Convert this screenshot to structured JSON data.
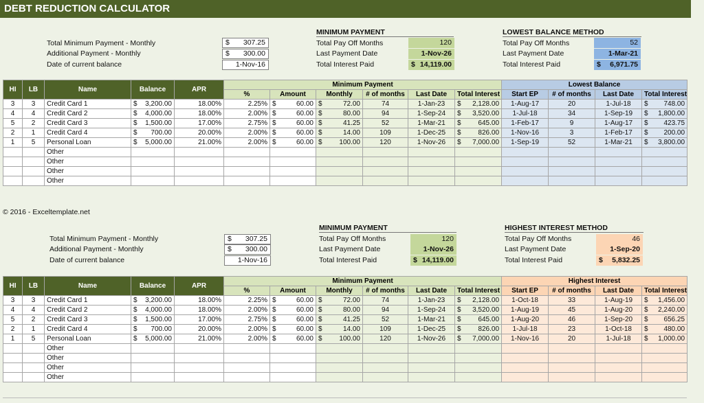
{
  "title": "DEBT REDUCTION CALCULATOR",
  "copyright": "© 2016 - Exceltemplate.net",
  "currency": "$",
  "colors": {
    "title_bg": "#4f6228",
    "min_green": "#c4d79b",
    "lowest_blue": "#8db4e2",
    "highest_orange": "#fcd5b4"
  },
  "inputs": {
    "labels": [
      "Total Minimum Payment - Monthly",
      "Additional Payment - Monthly",
      "Date of current balance"
    ],
    "total_min_payment": "307.25",
    "additional_payment": "300.00",
    "date_current_balance": "1-Nov-16"
  },
  "summary_labels": {
    "pay_off_months": "Total Pay Off Months",
    "last_payment_date": "Last Payment Date",
    "total_interest_paid": "Total Interest Paid"
  },
  "top": {
    "min_payment": {
      "heading": "MINIMUM PAYMENT",
      "months": "120",
      "last_date": "1-Nov-26",
      "interest": "14,119.00"
    },
    "method": {
      "heading": "LOWEST BALANCE METHOD",
      "months": "52",
      "last_date": "1-Mar-21",
      "interest": "6,971.75"
    },
    "table": {
      "headers": {
        "hi": "HI",
        "lb": "LB",
        "name": "Name",
        "balance": "Balance",
        "apr": "APR",
        "group_min": "Minimum Payment",
        "group_method": "Lowest Balance",
        "pct": "%",
        "amount": "Amount",
        "monthly": "Monthly",
        "months": "# of months",
        "last_date": "Last Date",
        "total_interest": "Total Interest",
        "start_ep": "Start EP",
        "m_months": "# of months",
        "m_last_date": "Last Date",
        "m_total_interest": "Total Interest"
      },
      "rows": [
        {
          "hi": "3",
          "lb": "3",
          "name": "Credit Card 1",
          "balance": "3,200.00",
          "apr": "18.00%",
          "pct": "2.25%",
          "amount": "60.00",
          "monthly": "72.00",
          "months": "74",
          "last_date": "1-Jan-23",
          "total_interest": "2,128.00",
          "start_ep": "1-Aug-17",
          "m_months": "20",
          "m_last_date": "1-Jul-18",
          "m_total_interest": "748.00"
        },
        {
          "hi": "4",
          "lb": "4",
          "name": "Credit Card 2",
          "balance": "4,000.00",
          "apr": "18.00%",
          "pct": "2.00%",
          "amount": "60.00",
          "monthly": "80.00",
          "months": "94",
          "last_date": "1-Sep-24",
          "total_interest": "3,520.00",
          "start_ep": "1-Jul-18",
          "m_months": "34",
          "m_last_date": "1-Sep-19",
          "m_total_interest": "1,800.00"
        },
        {
          "hi": "5",
          "lb": "2",
          "name": "Credit Card 3",
          "balance": "1,500.00",
          "apr": "17.00%",
          "pct": "2.75%",
          "amount": "60.00",
          "monthly": "41.25",
          "months": "52",
          "last_date": "1-Mar-21",
          "total_interest": "645.00",
          "start_ep": "1-Feb-17",
          "m_months": "9",
          "m_last_date": "1-Aug-17",
          "m_total_interest": "423.75"
        },
        {
          "hi": "2",
          "lb": "1",
          "name": "Credit Card 4",
          "balance": "700.00",
          "apr": "20.00%",
          "pct": "2.00%",
          "amount": "60.00",
          "monthly": "14.00",
          "months": "109",
          "last_date": "1-Dec-25",
          "total_interest": "826.00",
          "start_ep": "1-Nov-16",
          "m_months": "3",
          "m_last_date": "1-Feb-17",
          "m_total_interest": "200.00"
        },
        {
          "hi": "1",
          "lb": "5",
          "name": "Personal Loan",
          "balance": "5,000.00",
          "apr": "21.00%",
          "pct": "2.00%",
          "amount": "60.00",
          "monthly": "100.00",
          "months": "120",
          "last_date": "1-Nov-26",
          "total_interest": "7,000.00",
          "start_ep": "1-Sep-19",
          "m_months": "52",
          "m_last_date": "1-Mar-21",
          "m_total_interest": "3,800.00"
        },
        {
          "hi": "",
          "lb": "",
          "name": "Other",
          "balance": "",
          "apr": "",
          "pct": "",
          "amount": "",
          "monthly": "",
          "months": "",
          "last_date": "",
          "total_interest": "",
          "start_ep": "",
          "m_months": "",
          "m_last_date": "",
          "m_total_interest": ""
        },
        {
          "hi": "",
          "lb": "",
          "name": "Other",
          "balance": "",
          "apr": "",
          "pct": "",
          "amount": "",
          "monthly": "",
          "months": "",
          "last_date": "",
          "total_interest": "",
          "start_ep": "",
          "m_months": "",
          "m_last_date": "",
          "m_total_interest": ""
        },
        {
          "hi": "",
          "lb": "",
          "name": "Other",
          "balance": "",
          "apr": "",
          "pct": "",
          "amount": "",
          "monthly": "",
          "months": "",
          "last_date": "",
          "total_interest": "",
          "start_ep": "",
          "m_months": "",
          "m_last_date": "",
          "m_total_interest": ""
        },
        {
          "hi": "",
          "lb": "",
          "name": "Other",
          "balance": "",
          "apr": "",
          "pct": "",
          "amount": "",
          "monthly": "",
          "months": "",
          "last_date": "",
          "total_interest": "",
          "start_ep": "",
          "m_months": "",
          "m_last_date": "",
          "m_total_interest": ""
        }
      ]
    }
  },
  "bottom": {
    "min_payment": {
      "heading": "MINIMUM PAYMENT",
      "months": "120",
      "last_date": "1-Nov-26",
      "interest": "14,119.00"
    },
    "method": {
      "heading": "HIGHEST INTEREST METHOD",
      "months": "46",
      "last_date": "1-Sep-20",
      "interest": "5,832.25"
    },
    "table": {
      "headers": {
        "hi": "HI",
        "lb": "LB",
        "name": "Name",
        "balance": "Balance",
        "apr": "APR",
        "group_min": "Minimum Payment",
        "group_method": "Highest Interest",
        "pct": "%",
        "amount": "Amount",
        "monthly": "Monthly",
        "months": "# of months",
        "last_date": "Last Date",
        "total_interest": "Total Interest",
        "start_ep": "Start EP",
        "m_months": "# of months",
        "m_last_date": "Last Date",
        "m_total_interest": "Total Interest"
      },
      "rows": [
        {
          "hi": "3",
          "lb": "3",
          "name": "Credit Card 1",
          "balance": "3,200.00",
          "apr": "18.00%",
          "pct": "2.25%",
          "amount": "60.00",
          "monthly": "72.00",
          "months": "74",
          "last_date": "1-Jan-23",
          "total_interest": "2,128.00",
          "start_ep": "1-Oct-18",
          "m_months": "33",
          "m_last_date": "1-Aug-19",
          "m_total_interest": "1,456.00"
        },
        {
          "hi": "4",
          "lb": "4",
          "name": "Credit Card 2",
          "balance": "4,000.00",
          "apr": "18.00%",
          "pct": "2.00%",
          "amount": "60.00",
          "monthly": "80.00",
          "months": "94",
          "last_date": "1-Sep-24",
          "total_interest": "3,520.00",
          "start_ep": "1-Aug-19",
          "m_months": "45",
          "m_last_date": "1-Aug-20",
          "m_total_interest": "2,240.00"
        },
        {
          "hi": "5",
          "lb": "2",
          "name": "Credit Card 3",
          "balance": "1,500.00",
          "apr": "17.00%",
          "pct": "2.75%",
          "amount": "60.00",
          "monthly": "41.25",
          "months": "52",
          "last_date": "1-Mar-21",
          "total_interest": "645.00",
          "start_ep": "1-Aug-20",
          "m_months": "46",
          "m_last_date": "1-Sep-20",
          "m_total_interest": "656.25"
        },
        {
          "hi": "2",
          "lb": "1",
          "name": "Credit Card 4",
          "balance": "700.00",
          "apr": "20.00%",
          "pct": "2.00%",
          "amount": "60.00",
          "monthly": "14.00",
          "months": "109",
          "last_date": "1-Dec-25",
          "total_interest": "826.00",
          "start_ep": "1-Jul-18",
          "m_months": "23",
          "m_last_date": "1-Oct-18",
          "m_total_interest": "480.00"
        },
        {
          "hi": "1",
          "lb": "5",
          "name": "Personal Loan",
          "balance": "5,000.00",
          "apr": "21.00%",
          "pct": "2.00%",
          "amount": "60.00",
          "monthly": "100.00",
          "months": "120",
          "last_date": "1-Nov-26",
          "total_interest": "7,000.00",
          "start_ep": "1-Nov-16",
          "m_months": "20",
          "m_last_date": "1-Jul-18",
          "m_total_interest": "1,000.00"
        },
        {
          "hi": "",
          "lb": "",
          "name": "Other",
          "balance": "",
          "apr": "",
          "pct": "",
          "amount": "",
          "monthly": "",
          "months": "",
          "last_date": "",
          "total_interest": "",
          "start_ep": "",
          "m_months": "",
          "m_last_date": "",
          "m_total_interest": ""
        },
        {
          "hi": "",
          "lb": "",
          "name": "Other",
          "balance": "",
          "apr": "",
          "pct": "",
          "amount": "",
          "monthly": "",
          "months": "",
          "last_date": "",
          "total_interest": "",
          "start_ep": "",
          "m_months": "",
          "m_last_date": "",
          "m_total_interest": ""
        },
        {
          "hi": "",
          "lb": "",
          "name": "Other",
          "balance": "",
          "apr": "",
          "pct": "",
          "amount": "",
          "monthly": "",
          "months": "",
          "last_date": "",
          "total_interest": "",
          "start_ep": "",
          "m_months": "",
          "m_last_date": "",
          "m_total_interest": ""
        },
        {
          "hi": "",
          "lb": "",
          "name": "Other",
          "balance": "",
          "apr": "",
          "pct": "",
          "amount": "",
          "monthly": "",
          "months": "",
          "last_date": "",
          "total_interest": "",
          "start_ep": "",
          "m_months": "",
          "m_last_date": "",
          "m_total_interest": ""
        }
      ]
    }
  }
}
